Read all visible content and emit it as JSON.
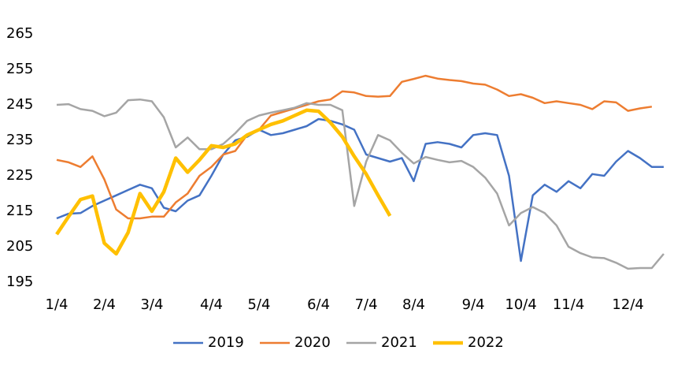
{
  "chart_data": {
    "type": "line",
    "categories": [
      "1/4",
      null,
      null,
      null,
      "2/4",
      null,
      null,
      null,
      "3/4",
      null,
      null,
      null,
      null,
      "4/4",
      null,
      null,
      null,
      "5/4",
      null,
      null,
      null,
      null,
      "6/4",
      null,
      null,
      null,
      "7/4",
      null,
      null,
      null,
      "8/4",
      null,
      null,
      null,
      null,
      "9/4",
      null,
      null,
      null,
      "10/4",
      null,
      null,
      null,
      "11/4",
      null,
      null,
      null,
      null,
      "12/4",
      null,
      null,
      null
    ],
    "ylim": [
      195,
      265
    ],
    "yticks": [
      195,
      205,
      215,
      225,
      235,
      245,
      255,
      265
    ],
    "grid": false,
    "legend": "bottom",
    "series": [
      {
        "name": "2019",
        "color": "#4472c4",
        "values": [
          213,
          214.3,
          214.5,
          216.5,
          218,
          219.5,
          221,
          222.5,
          221.5,
          216,
          215,
          218,
          219.5,
          225,
          231,
          235,
          236,
          238,
          236.5,
          237,
          238,
          239,
          241,
          240.5,
          239.5,
          238,
          231,
          230,
          229,
          230,
          223.5,
          234,
          234.5,
          234,
          233,
          236.5,
          237,
          236.5,
          225,
          201,
          219.5,
          222.5,
          220.5,
          223.5,
          221.5,
          225.5,
          225,
          229,
          232,
          230,
          227.5,
          227.5
        ]
      },
      {
        "name": "2020",
        "color": "#ed7d31",
        "values": [
          229.5,
          228.8,
          227.5,
          230.5,
          224,
          215.5,
          213,
          213,
          213.5,
          213.5,
          217.5,
          220,
          225,
          227.5,
          231,
          232,
          236.5,
          238,
          242,
          243,
          244,
          245,
          246,
          246.5,
          248.8,
          248.5,
          247.5,
          247.3,
          247.5,
          251.5,
          252.3,
          253.2,
          252.4,
          252,
          251.7,
          251,
          250.7,
          249.3,
          247.5,
          248,
          247,
          245.5,
          246,
          245.5,
          245,
          243.8,
          246,
          245.7,
          243.3,
          244,
          244.5,
          null
        ]
      },
      {
        "name": "2021",
        "color": "#a5a5a5",
        "values": [
          245,
          245.2,
          243.8,
          243.3,
          241.8,
          242.8,
          246.3,
          246.5,
          246,
          241.5,
          233,
          235.8,
          232.5,
          232.5,
          234,
          237,
          240.5,
          242,
          242.8,
          243.5,
          244.2,
          245.5,
          245,
          245,
          243.5,
          216.5,
          229,
          236.5,
          235,
          231.5,
          228.5,
          230.3,
          229.5,
          228.8,
          229.2,
          227.5,
          224.5,
          220,
          211,
          214.5,
          216.2,
          214.5,
          211,
          205,
          203.2,
          202,
          201.8,
          200.5,
          198.8,
          199,
          199,
          203
        ]
      },
      {
        "name": "2022",
        "color": "#ffc000",
        "values": [
          208.5,
          213.5,
          218.3,
          219.3,
          206,
          203,
          209,
          220,
          215,
          220.5,
          230,
          226,
          229.5,
          233.5,
          233,
          234,
          236.5,
          238,
          239.5,
          240.5,
          242,
          243.5,
          243.2,
          240,
          236,
          230.5,
          225.5,
          219.5,
          213.7,
          null,
          null,
          null,
          null,
          null,
          null,
          null,
          null,
          null,
          null,
          null,
          null,
          null,
          null,
          null,
          null,
          null,
          null,
          null,
          null,
          null,
          null,
          null
        ]
      }
    ]
  }
}
